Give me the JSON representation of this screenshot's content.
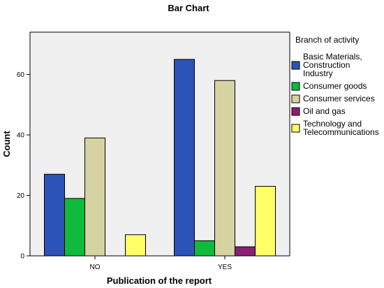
{
  "chart_data": {
    "type": "bar",
    "title": "Bar Chart",
    "xlabel": "Publication of the report",
    "ylabel": "Count",
    "categories": [
      "NO",
      "YES"
    ],
    "ylim": [
      0,
      74
    ],
    "yticks": [
      0,
      20,
      40,
      60
    ],
    "grid": false,
    "legend_position": "right",
    "legend_title": "Branch of activity",
    "series": [
      {
        "name": "Basic Materials, Construction Industry",
        "name_lines": [
          "Basic Materials,",
          "Construction",
          "Industry"
        ],
        "color": "#2b53b8",
        "values": [
          27,
          65
        ]
      },
      {
        "name": "Consumer goods",
        "name_lines": [
          "Consumer goods"
        ],
        "color": "#0fba3d",
        "values": [
          19,
          5
        ]
      },
      {
        "name": "Consumer services",
        "name_lines": [
          "Consumer services"
        ],
        "color": "#d6d3a3",
        "values": [
          39,
          58
        ]
      },
      {
        "name": "Oil and gas",
        "name_lines": [
          "Oil and gas"
        ],
        "color": "#8c1f73",
        "values": [
          0,
          3
        ]
      },
      {
        "name": "Technology and Telecommunications",
        "name_lines": [
          "Technology and",
          "Telecommunications"
        ],
        "color": "#ffff66",
        "values": [
          7,
          23
        ]
      }
    ]
  }
}
